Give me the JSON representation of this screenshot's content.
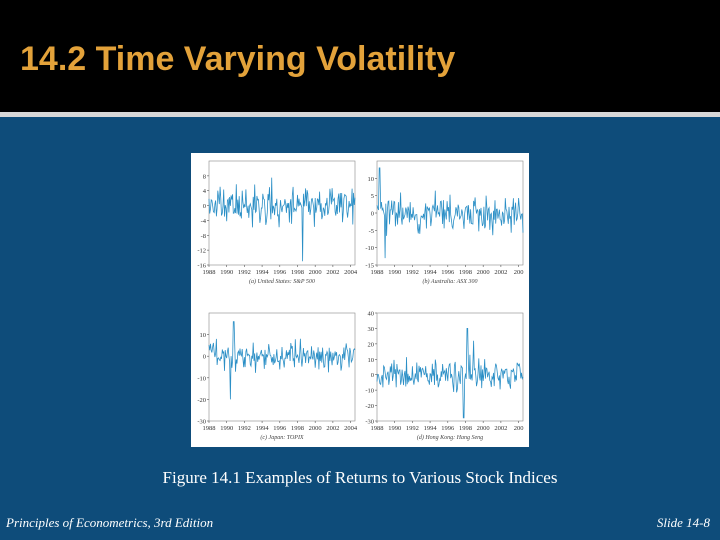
{
  "slide": {
    "title": "14.2 Time Varying Volatility",
    "caption": "Figure 14.1 Examples of Returns to Various Stock Indices",
    "footer_left": "Principles of Econometrics, 3rd Edition",
    "footer_right": "Slide 14-8"
  },
  "colors": {
    "title": "#e3a23a",
    "background": "#0e4c7a",
    "series": "#2b8fc6"
  },
  "chart_data": [
    {
      "type": "line",
      "caption": "(a) United States: S&P 500",
      "x_ticks": [
        "1988",
        "1990",
        "1992",
        "1994",
        "1996",
        "1998",
        "2000",
        "2002",
        "2004"
      ],
      "y_ticks": [
        8,
        4,
        0,
        -4,
        -8,
        -12,
        -16
      ],
      "ylim": [
        -16,
        12
      ],
      "xlim": [
        1988,
        2004.5
      ],
      "seed": 11,
      "scale": 4.0,
      "spikes": [
        [
          1998.6,
          -15
        ]
      ]
    },
    {
      "type": "line",
      "caption": "(b) Australia: ASX 300",
      "x_ticks": [
        "1988",
        "1990",
        "1992",
        "1994",
        "1996",
        "1998",
        "2000",
        "2002",
        "200"
      ],
      "y_ticks": [
        10,
        5,
        0,
        -5,
        -10,
        -15
      ],
      "ylim": [
        -15,
        15
      ],
      "xlim": [
        1988,
        2004.5
      ],
      "seed": 23,
      "scale": 4.2,
      "spikes": [
        [
          1988.3,
          13
        ],
        [
          1988.9,
          -13
        ]
      ]
    },
    {
      "type": "line",
      "caption": "(c) Japan: TOPIX",
      "x_ticks": [
        "1988",
        "1990",
        "1992",
        "1994",
        "1996",
        "1998",
        "2000",
        "2002",
        "2004"
      ],
      "y_ticks": [
        10,
        0,
        -10,
        -20,
        -30
      ],
      "ylim": [
        -30,
        20
      ],
      "xlim": [
        1988,
        2004.5
      ],
      "seed": 37,
      "scale": 5.0,
      "spikes": [
        [
          1990.8,
          16
        ],
        [
          1990.4,
          -20
        ]
      ]
    },
    {
      "type": "line",
      "caption": "(d) Hong Kong: Hang Seng",
      "x_ticks": [
        "1988",
        "1990",
        "1992",
        "1994",
        "1996",
        "1998",
        "2000",
        "2002",
        "200"
      ],
      "y_ticks": [
        40,
        30,
        20,
        10,
        0,
        -10,
        -20,
        -30
      ],
      "ylim": [
        -30,
        40
      ],
      "xlim": [
        1988,
        2004.5
      ],
      "seed": 53,
      "scale": 7.5,
      "spikes": [
        [
          1997.8,
          -28
        ],
        [
          1998.2,
          30
        ],
        [
          1998.9,
          22
        ]
      ]
    }
  ]
}
